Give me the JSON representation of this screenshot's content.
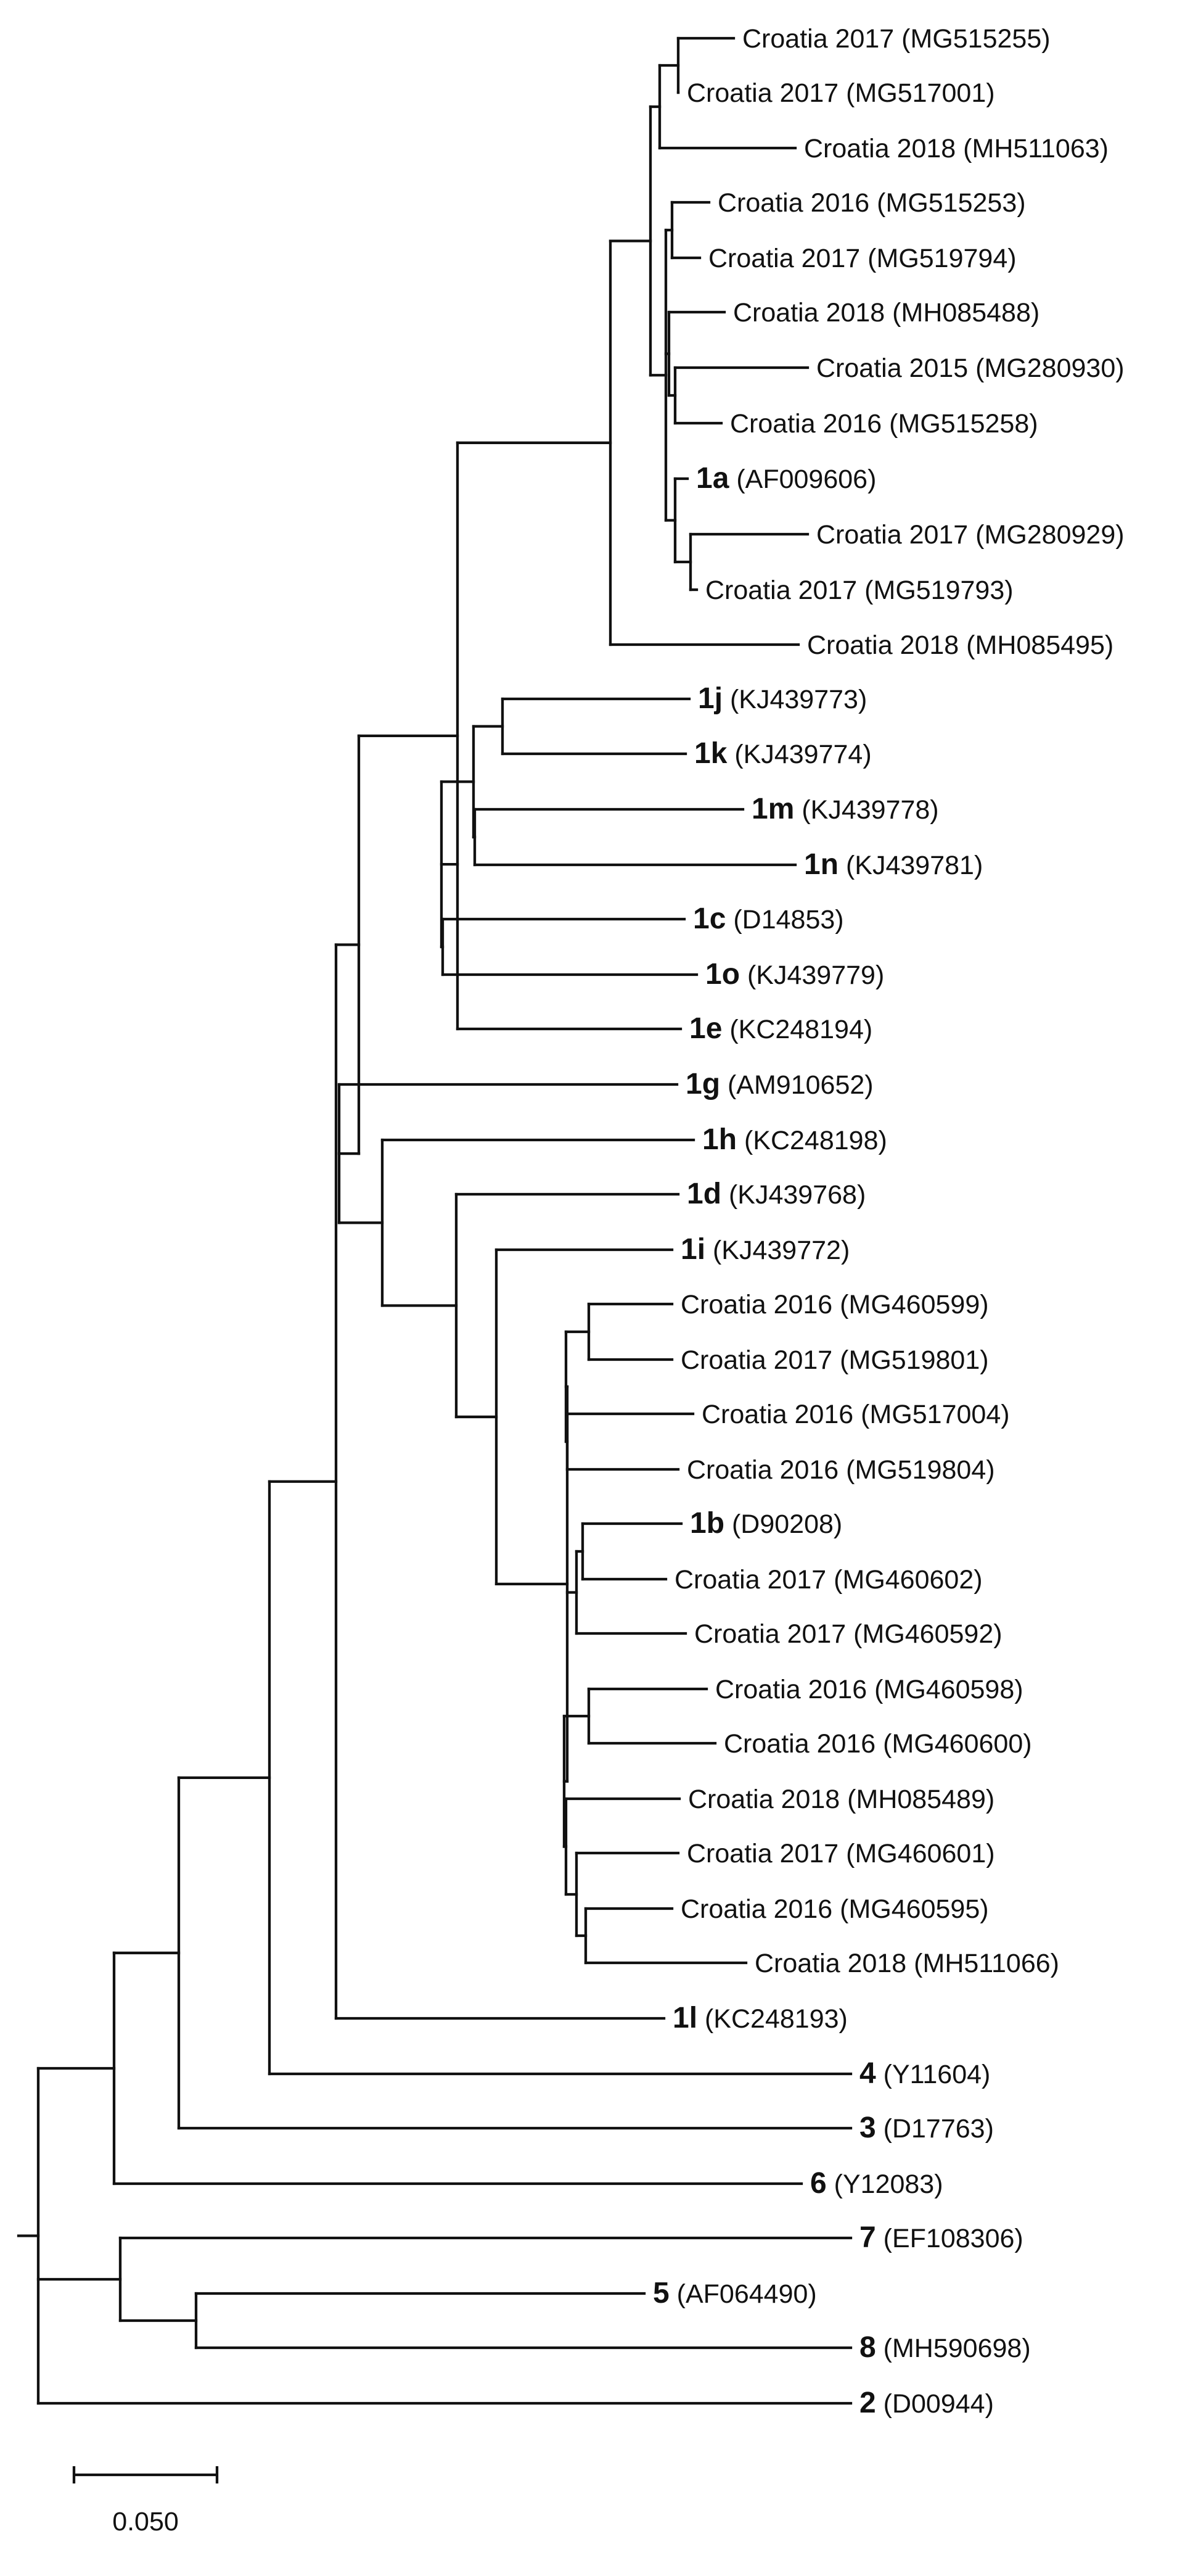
{
  "figure": {
    "type": "phylogenetic_tree",
    "scale_bar_label": "0.050"
  },
  "leaves": [
    {
      "name": "Croatia 2017",
      "acc": "(MG515255)"
    },
    {
      "name": "Croatia 2017",
      "acc": "(MG517001)"
    },
    {
      "name": "Croatia 2018",
      "acc": "(MH511063)"
    },
    {
      "name": "Croatia 2016",
      "acc": "(MG515253)"
    },
    {
      "name": "Croatia 2017",
      "acc": "(MG519794)"
    },
    {
      "name": "Croatia 2018",
      "acc": "(MH085488)"
    },
    {
      "name": "Croatia 2015",
      "acc": "(MG280930)"
    },
    {
      "name": "Croatia 2016",
      "acc": "(MG515258)"
    },
    {
      "name": "1a",
      "acc": "(AF009606)",
      "bold": true
    },
    {
      "name": "Croatia 2017",
      "acc": "(MG280929)"
    },
    {
      "name": "Croatia 2017",
      "acc": "(MG519793)"
    },
    {
      "name": "Croatia 2018",
      "acc": "(MH085495)"
    },
    {
      "name": "1j",
      "acc": "(KJ439773)",
      "bold": true
    },
    {
      "name": "1k",
      "acc": "(KJ439774)",
      "bold": true
    },
    {
      "name": "1m",
      "acc": "(KJ439778)",
      "bold": true
    },
    {
      "name": "1n",
      "acc": "(KJ439781)",
      "bold": true
    },
    {
      "name": "1c",
      "acc": "(D14853)",
      "bold": true
    },
    {
      "name": "1o",
      "acc": "(KJ439779)",
      "bold": true
    },
    {
      "name": "1e",
      "acc": "(KC248194)",
      "bold": true
    },
    {
      "name": "1g",
      "acc": "(AM910652)",
      "bold": true
    },
    {
      "name": "1h",
      "acc": "(KC248198)",
      "bold": true
    },
    {
      "name": "1d",
      "acc": "(KJ439768)",
      "bold": true
    },
    {
      "name": "1i",
      "acc": "(KJ439772)",
      "bold": true
    },
    {
      "name": "Croatia 2016",
      "acc": "(MG460599)"
    },
    {
      "name": "Croatia 2017",
      "acc": "(MG519801)"
    },
    {
      "name": "Croatia 2016",
      "acc": "(MG517004)"
    },
    {
      "name": "Croatia 2016",
      "acc": "(MG519804)"
    },
    {
      "name": "1b",
      "acc": "(D90208)",
      "bold": true
    },
    {
      "name": "Croatia 2017",
      "acc": "(MG460602)"
    },
    {
      "name": "Croatia 2017",
      "acc": "(MG460592)"
    },
    {
      "name": "Croatia 2016",
      "acc": "(MG460598)"
    },
    {
      "name": "Croatia 2016",
      "acc": "(MG460600)"
    },
    {
      "name": "Croatia 2018",
      "acc": "(MH085489)"
    },
    {
      "name": "Croatia 2017",
      "acc": "(MG460601)"
    },
    {
      "name": "Croatia 2016",
      "acc": "(MG460595)"
    },
    {
      "name": "Croatia 2018",
      "acc": "(MH511066)"
    },
    {
      "name": "1l",
      "acc": "(KC248193)",
      "bold": true
    },
    {
      "name": "4",
      "acc": "(Y11604)",
      "bold": true
    },
    {
      "name": "3",
      "acc": "(D17763)",
      "bold": true
    },
    {
      "name": "6",
      "acc": "(Y12083)",
      "bold": true
    },
    {
      "name": "7",
      "acc": "(EF108306)",
      "bold": true
    },
    {
      "name": "5",
      "acc": "(AF064490)",
      "bold": true
    },
    {
      "name": "8",
      "acc": "(MH590698)",
      "bold": true
    },
    {
      "name": "2",
      "acc": "(D00944)",
      "bold": true
    }
  ]
}
